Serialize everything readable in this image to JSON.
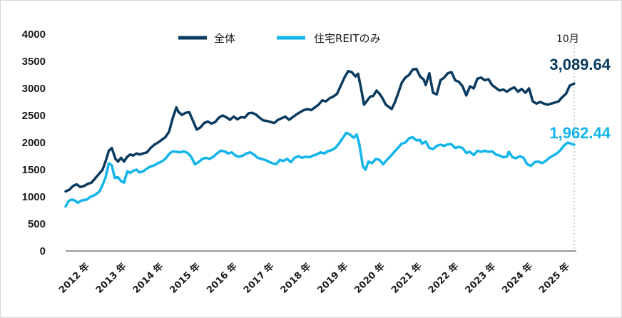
{
  "chart_data": {
    "type": "line",
    "title": "",
    "xlabel": "",
    "ylabel": "",
    "ylim": [
      0,
      4000
    ],
    "yticks": [
      0,
      500,
      1000,
      1500,
      2000,
      2500,
      3000,
      3500,
      4000
    ],
    "x_tick_labels": [
      "2012 年",
      "2013 年",
      "2014 年",
      "2015 年",
      "2016 年",
      "2017 年",
      "2018 年",
      "2019 年",
      "2020 年",
      "2021 年",
      "2022 年",
      "2023 年",
      "2024 年",
      "2025 年"
    ],
    "x_range": [
      2012.0,
      2025.83
    ],
    "marker": {
      "x": 2025.77,
      "label": "10月"
    },
    "legend_position": "top-center",
    "series": [
      {
        "name": "全体",
        "color": "#0a3a5e",
        "end_label": "3,089.64",
        "points": [
          [
            2012.0,
            1100
          ],
          [
            2012.1,
            1130
          ],
          [
            2012.2,
            1200
          ],
          [
            2012.3,
            1230
          ],
          [
            2012.4,
            1180
          ],
          [
            2012.5,
            1200
          ],
          [
            2012.6,
            1240
          ],
          [
            2012.7,
            1260
          ],
          [
            2012.8,
            1340
          ],
          [
            2012.9,
            1420
          ],
          [
            2013.0,
            1500
          ],
          [
            2013.08,
            1650
          ],
          [
            2013.17,
            1850
          ],
          [
            2013.25,
            1900
          ],
          [
            2013.35,
            1700
          ],
          [
            2013.42,
            1650
          ],
          [
            2013.5,
            1720
          ],
          [
            2013.58,
            1650
          ],
          [
            2013.67,
            1740
          ],
          [
            2013.75,
            1780
          ],
          [
            2013.83,
            1760
          ],
          [
            2013.92,
            1800
          ],
          [
            2014.0,
            1780
          ],
          [
            2014.1,
            1800
          ],
          [
            2014.2,
            1820
          ],
          [
            2014.3,
            1900
          ],
          [
            2014.4,
            1960
          ],
          [
            2014.5,
            2000
          ],
          [
            2014.6,
            2050
          ],
          [
            2014.7,
            2100
          ],
          [
            2014.8,
            2200
          ],
          [
            2014.9,
            2450
          ],
          [
            2015.0,
            2650
          ],
          [
            2015.05,
            2570
          ],
          [
            2015.15,
            2510
          ],
          [
            2015.25,
            2550
          ],
          [
            2015.35,
            2560
          ],
          [
            2015.45,
            2400
          ],
          [
            2015.55,
            2240
          ],
          [
            2015.65,
            2280
          ],
          [
            2015.75,
            2360
          ],
          [
            2015.85,
            2390
          ],
          [
            2015.95,
            2350
          ],
          [
            2016.05,
            2380
          ],
          [
            2016.15,
            2460
          ],
          [
            2016.25,
            2500
          ],
          [
            2016.35,
            2470
          ],
          [
            2016.45,
            2420
          ],
          [
            2016.55,
            2480
          ],
          [
            2016.65,
            2430
          ],
          [
            2016.75,
            2470
          ],
          [
            2016.85,
            2460
          ],
          [
            2016.95,
            2540
          ],
          [
            2017.05,
            2550
          ],
          [
            2017.15,
            2520
          ],
          [
            2017.25,
            2460
          ],
          [
            2017.35,
            2410
          ],
          [
            2017.45,
            2400
          ],
          [
            2017.55,
            2380
          ],
          [
            2017.65,
            2360
          ],
          [
            2017.75,
            2420
          ],
          [
            2017.85,
            2450
          ],
          [
            2017.95,
            2480
          ],
          [
            2018.05,
            2420
          ],
          [
            2018.15,
            2470
          ],
          [
            2018.25,
            2520
          ],
          [
            2018.35,
            2560
          ],
          [
            2018.45,
            2600
          ],
          [
            2018.55,
            2620
          ],
          [
            2018.65,
            2600
          ],
          [
            2018.75,
            2650
          ],
          [
            2018.85,
            2700
          ],
          [
            2018.95,
            2780
          ],
          [
            2019.05,
            2760
          ],
          [
            2019.15,
            2820
          ],
          [
            2019.25,
            2850
          ],
          [
            2019.35,
            2900
          ],
          [
            2019.45,
            3050
          ],
          [
            2019.55,
            3200
          ],
          [
            2019.65,
            3320
          ],
          [
            2019.75,
            3300
          ],
          [
            2019.85,
            3220
          ],
          [
            2019.92,
            3270
          ],
          [
            2020.0,
            3000
          ],
          [
            2020.08,
            2700
          ],
          [
            2020.17,
            2780
          ],
          [
            2020.25,
            2850
          ],
          [
            2020.33,
            2860
          ],
          [
            2020.42,
            2960
          ],
          [
            2020.5,
            2900
          ],
          [
            2020.58,
            2820
          ],
          [
            2020.67,
            2700
          ],
          [
            2020.75,
            2660
          ],
          [
            2020.83,
            2620
          ],
          [
            2020.92,
            2750
          ],
          [
            2021.0,
            2900
          ],
          [
            2021.1,
            3100
          ],
          [
            2021.2,
            3200
          ],
          [
            2021.3,
            3250
          ],
          [
            2021.4,
            3350
          ],
          [
            2021.5,
            3360
          ],
          [
            2021.6,
            3220
          ],
          [
            2021.7,
            3160
          ],
          [
            2021.75,
            3060
          ],
          [
            2021.85,
            3280
          ],
          [
            2021.95,
            2920
          ],
          [
            2022.05,
            2890
          ],
          [
            2022.15,
            3150
          ],
          [
            2022.25,
            3200
          ],
          [
            2022.35,
            3280
          ],
          [
            2022.45,
            3300
          ],
          [
            2022.55,
            3150
          ],
          [
            2022.65,
            3120
          ],
          [
            2022.75,
            3040
          ],
          [
            2022.85,
            2870
          ],
          [
            2022.95,
            3040
          ],
          [
            2023.05,
            3000
          ],
          [
            2023.15,
            3180
          ],
          [
            2023.25,
            3200
          ],
          [
            2023.35,
            3150
          ],
          [
            2023.45,
            3170
          ],
          [
            2023.55,
            3060
          ],
          [
            2023.65,
            3010
          ],
          [
            2023.75,
            2960
          ],
          [
            2023.85,
            2980
          ],
          [
            2023.95,
            2940
          ],
          [
            2024.05,
            2990
          ],
          [
            2024.15,
            3020
          ],
          [
            2024.25,
            2940
          ],
          [
            2024.35,
            2990
          ],
          [
            2024.45,
            2920
          ],
          [
            2024.55,
            3000
          ],
          [
            2024.65,
            2760
          ],
          [
            2024.75,
            2720
          ],
          [
            2024.85,
            2750
          ],
          [
            2024.95,
            2720
          ],
          [
            2025.05,
            2700
          ],
          [
            2025.15,
            2720
          ],
          [
            2025.25,
            2740
          ],
          [
            2025.35,
            2760
          ],
          [
            2025.45,
            2840
          ],
          [
            2025.55,
            2900
          ],
          [
            2025.65,
            3050
          ],
          [
            2025.77,
            3089.64
          ]
        ]
      },
      {
        "name": "住宅REITのみ",
        "color": "#12b5ea",
        "end_label": "1,962.44",
        "points": [
          [
            2012.0,
            820
          ],
          [
            2012.08,
            920
          ],
          [
            2012.17,
            950
          ],
          [
            2012.25,
            930
          ],
          [
            2012.33,
            890
          ],
          [
            2012.42,
            930
          ],
          [
            2012.5,
            940
          ],
          [
            2012.58,
            950
          ],
          [
            2012.67,
            1000
          ],
          [
            2012.75,
            1020
          ],
          [
            2012.83,
            1050
          ],
          [
            2012.92,
            1100
          ],
          [
            2013.0,
            1220
          ],
          [
            2013.08,
            1350
          ],
          [
            2013.17,
            1620
          ],
          [
            2013.25,
            1580
          ],
          [
            2013.33,
            1350
          ],
          [
            2013.42,
            1360
          ],
          [
            2013.5,
            1290
          ],
          [
            2013.58,
            1260
          ],
          [
            2013.67,
            1470
          ],
          [
            2013.75,
            1440
          ],
          [
            2013.83,
            1480
          ],
          [
            2013.92,
            1500
          ],
          [
            2014.0,
            1450
          ],
          [
            2014.1,
            1470
          ],
          [
            2014.2,
            1520
          ],
          [
            2014.3,
            1560
          ],
          [
            2014.4,
            1580
          ],
          [
            2014.5,
            1620
          ],
          [
            2014.6,
            1650
          ],
          [
            2014.7,
            1700
          ],
          [
            2014.8,
            1790
          ],
          [
            2014.9,
            1840
          ],
          [
            2015.0,
            1830
          ],
          [
            2015.1,
            1820
          ],
          [
            2015.2,
            1840
          ],
          [
            2015.3,
            1810
          ],
          [
            2015.4,
            1740
          ],
          [
            2015.5,
            1600
          ],
          [
            2015.6,
            1640
          ],
          [
            2015.7,
            1700
          ],
          [
            2015.8,
            1720
          ],
          [
            2015.9,
            1700
          ],
          [
            2016.0,
            1740
          ],
          [
            2016.1,
            1800
          ],
          [
            2016.2,
            1850
          ],
          [
            2016.3,
            1840
          ],
          [
            2016.4,
            1800
          ],
          [
            2016.5,
            1820
          ],
          [
            2016.6,
            1760
          ],
          [
            2016.7,
            1740
          ],
          [
            2016.8,
            1760
          ],
          [
            2016.9,
            1800
          ],
          [
            2017.0,
            1820
          ],
          [
            2017.1,
            1780
          ],
          [
            2017.2,
            1720
          ],
          [
            2017.3,
            1700
          ],
          [
            2017.4,
            1680
          ],
          [
            2017.5,
            1650
          ],
          [
            2017.6,
            1620
          ],
          [
            2017.7,
            1600
          ],
          [
            2017.8,
            1680
          ],
          [
            2017.9,
            1660
          ],
          [
            2018.0,
            1700
          ],
          [
            2018.1,
            1640
          ],
          [
            2018.2,
            1720
          ],
          [
            2018.3,
            1750
          ],
          [
            2018.4,
            1720
          ],
          [
            2018.5,
            1740
          ],
          [
            2018.6,
            1730
          ],
          [
            2018.7,
            1760
          ],
          [
            2018.8,
            1780
          ],
          [
            2018.9,
            1820
          ],
          [
            2019.0,
            1800
          ],
          [
            2019.1,
            1840
          ],
          [
            2019.2,
            1860
          ],
          [
            2019.3,
            1900
          ],
          [
            2019.4,
            1980
          ],
          [
            2019.5,
            2080
          ],
          [
            2019.6,
            2180
          ],
          [
            2019.7,
            2150
          ],
          [
            2019.8,
            2090
          ],
          [
            2019.88,
            2150
          ],
          [
            2019.95,
            1980
          ],
          [
            2020.05,
            1560
          ],
          [
            2020.12,
            1500
          ],
          [
            2020.2,
            1650
          ],
          [
            2020.3,
            1620
          ],
          [
            2020.4,
            1700
          ],
          [
            2020.5,
            1680
          ],
          [
            2020.6,
            1600
          ],
          [
            2020.7,
            1680
          ],
          [
            2020.8,
            1750
          ],
          [
            2020.9,
            1830
          ],
          [
            2021.0,
            1900
          ],
          [
            2021.1,
            1980
          ],
          [
            2021.2,
            2000
          ],
          [
            2021.3,
            2080
          ],
          [
            2021.4,
            2100
          ],
          [
            2021.5,
            2040
          ],
          [
            2021.6,
            2050
          ],
          [
            2021.65,
            1980
          ],
          [
            2021.75,
            2020
          ],
          [
            2021.85,
            1900
          ],
          [
            2021.95,
            1880
          ],
          [
            2022.05,
            1940
          ],
          [
            2022.15,
            1960
          ],
          [
            2022.25,
            1940
          ],
          [
            2022.35,
            1970
          ],
          [
            2022.45,
            1970
          ],
          [
            2022.55,
            1900
          ],
          [
            2022.65,
            1920
          ],
          [
            2022.75,
            1900
          ],
          [
            2022.85,
            1810
          ],
          [
            2022.95,
            1830
          ],
          [
            2023.05,
            1770
          ],
          [
            2023.15,
            1850
          ],
          [
            2023.25,
            1830
          ],
          [
            2023.35,
            1850
          ],
          [
            2023.45,
            1830
          ],
          [
            2023.55,
            1840
          ],
          [
            2023.65,
            1780
          ],
          [
            2023.75,
            1760
          ],
          [
            2023.85,
            1730
          ],
          [
            2023.95,
            1740
          ],
          [
            2024.0,
            1830
          ],
          [
            2024.1,
            1730
          ],
          [
            2024.2,
            1710
          ],
          [
            2024.3,
            1750
          ],
          [
            2024.4,
            1720
          ],
          [
            2024.5,
            1600
          ],
          [
            2024.6,
            1570
          ],
          [
            2024.7,
            1640
          ],
          [
            2024.8,
            1650
          ],
          [
            2024.9,
            1620
          ],
          [
            2025.0,
            1660
          ],
          [
            2025.1,
            1720
          ],
          [
            2025.2,
            1760
          ],
          [
            2025.3,
            1800
          ],
          [
            2025.4,
            1860
          ],
          [
            2025.5,
            1950
          ],
          [
            2025.6,
            2000
          ],
          [
            2025.77,
            1962.44
          ]
        ]
      }
    ]
  }
}
